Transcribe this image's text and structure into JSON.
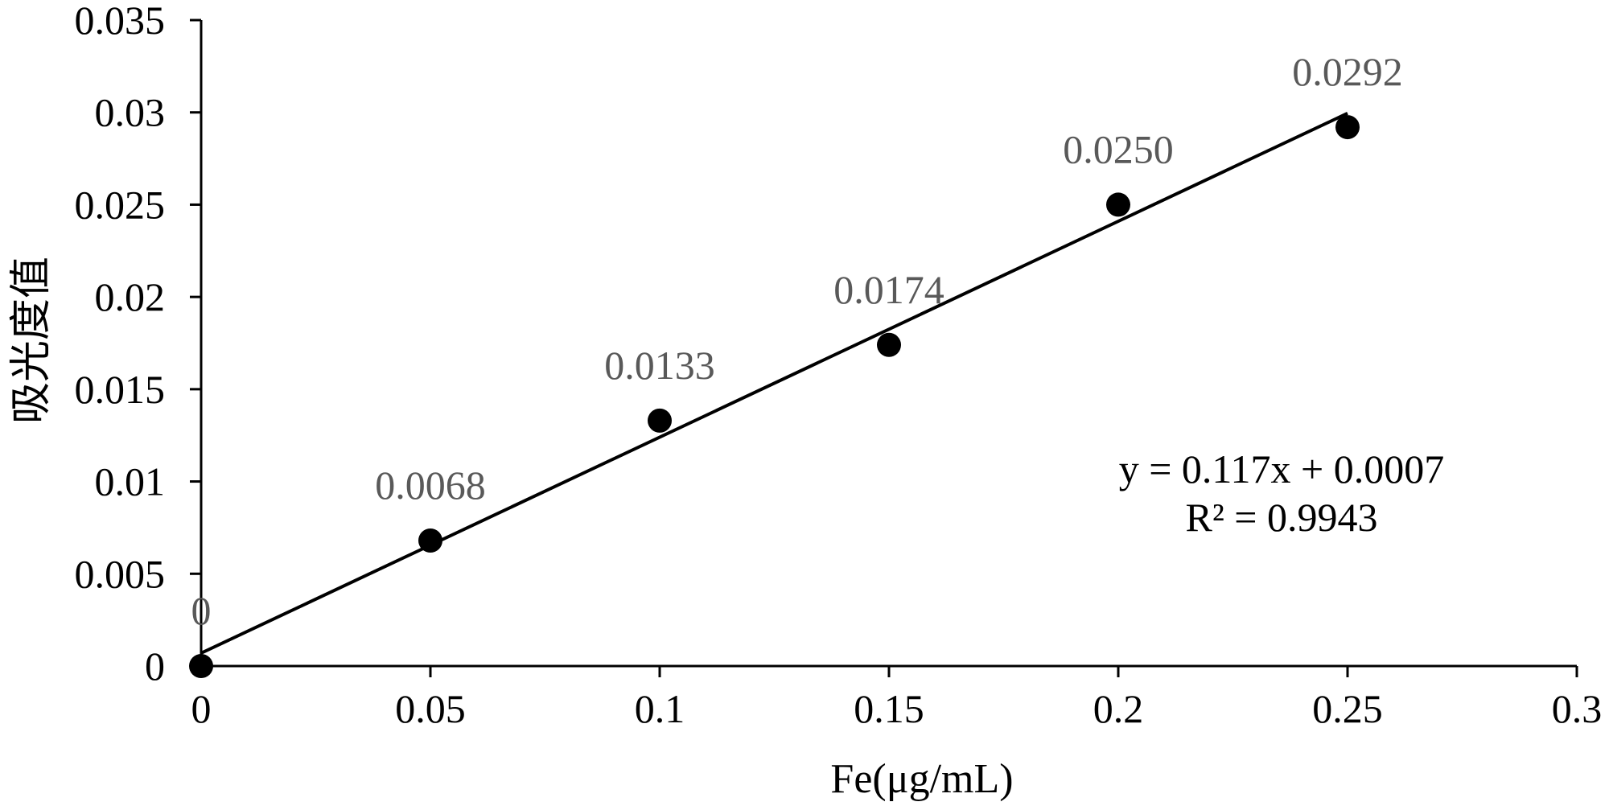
{
  "chart_data": {
    "type": "scatter",
    "xlabel": "Fe(μg/mL)",
    "ylabel": "吸光度值",
    "xlim": [
      0,
      0.3
    ],
    "ylim": [
      0,
      0.035
    ],
    "x_ticks": [
      "0",
      "0.05",
      "0.1",
      "0.15",
      "0.2",
      "0.25",
      "0.3"
    ],
    "y_ticks": [
      "0",
      "0.005",
      "0.01",
      "0.015",
      "0.02",
      "0.025",
      "0.03",
      "0.035"
    ],
    "grid": false,
    "series": [
      {
        "x": [
          0,
          0.05,
          0.1,
          0.15,
          0.2,
          0.25
        ],
        "y": [
          0,
          0.0068,
          0.0133,
          0.0174,
          0.025,
          0.0292
        ],
        "labels": [
          "0",
          "0.0068",
          "0.0133",
          "0.0174",
          "0.0250",
          "0.0292"
        ],
        "color": "#000000"
      }
    ],
    "trendline": {
      "slope": 0.117,
      "intercept": 0.0007,
      "x_range": [
        0,
        0.25
      ],
      "equation": "y = 0.117x + 0.0007",
      "r2": "R² = 0.9943"
    }
  }
}
